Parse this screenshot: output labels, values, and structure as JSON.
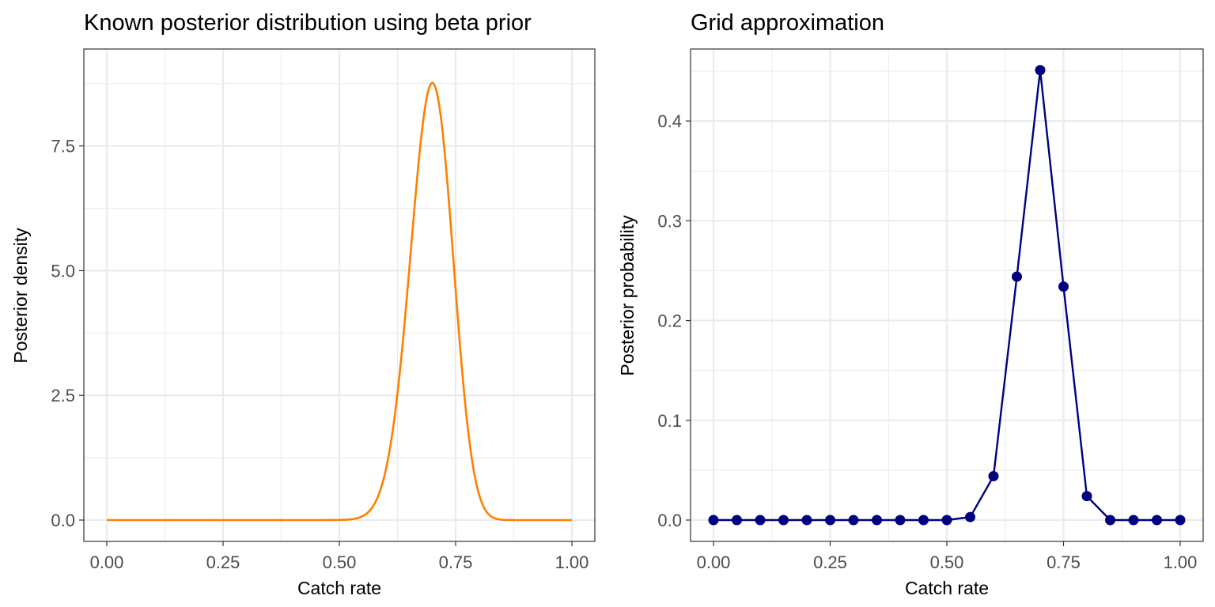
{
  "chart_data": [
    {
      "type": "line",
      "title": "Known posterior distribution using beta prior",
      "xlabel": "Catch rate",
      "ylabel": "Posterior density",
      "xlim": [
        0,
        1
      ],
      "ylim": [
        0,
        9.0
      ],
      "xticks": [
        0,
        0.25,
        0.5,
        0.75,
        1
      ],
      "xtick_labels": [
        "0.00",
        "0.25",
        "0.50",
        "0.75",
        "1.00"
      ],
      "yticks": [
        0,
        2.5,
        5,
        7.5
      ],
      "ytick_labels": [
        "0.0",
        "2.5",
        "5.0",
        "7.5"
      ],
      "grid": true,
      "color": "#ff7f00",
      "distribution": {
        "family": "beta",
        "alpha": 71,
        "beta": 31
      }
    },
    {
      "type": "line",
      "markers": true,
      "title": "Grid approximation",
      "xlabel": "Catch rate",
      "ylabel": "Posterior probability",
      "xlim": [
        0,
        1
      ],
      "ylim": [
        0,
        0.45
      ],
      "xticks": [
        0,
        0.25,
        0.5,
        0.75,
        1
      ],
      "xtick_labels": [
        "0.00",
        "0.25",
        "0.50",
        "0.75",
        "1.00"
      ],
      "yticks": [
        0,
        0.1,
        0.2,
        0.3,
        0.4
      ],
      "ytick_labels": [
        "0.0",
        "0.1",
        "0.2",
        "0.3",
        "0.4"
      ],
      "grid": true,
      "color": "#000080",
      "x": [
        0,
        0.05,
        0.1,
        0.15,
        0.2,
        0.25,
        0.3,
        0.35,
        0.4,
        0.45,
        0.5,
        0.55,
        0.6,
        0.65,
        0.7,
        0.75,
        0.8,
        0.85,
        0.9,
        0.95,
        1.0
      ],
      "y": [
        0,
        0,
        0,
        0,
        0,
        0,
        0,
        0,
        0,
        0,
        0,
        0.003,
        0.044,
        0.244,
        0.451,
        0.234,
        0.024,
        0,
        0,
        0,
        0
      ]
    }
  ]
}
